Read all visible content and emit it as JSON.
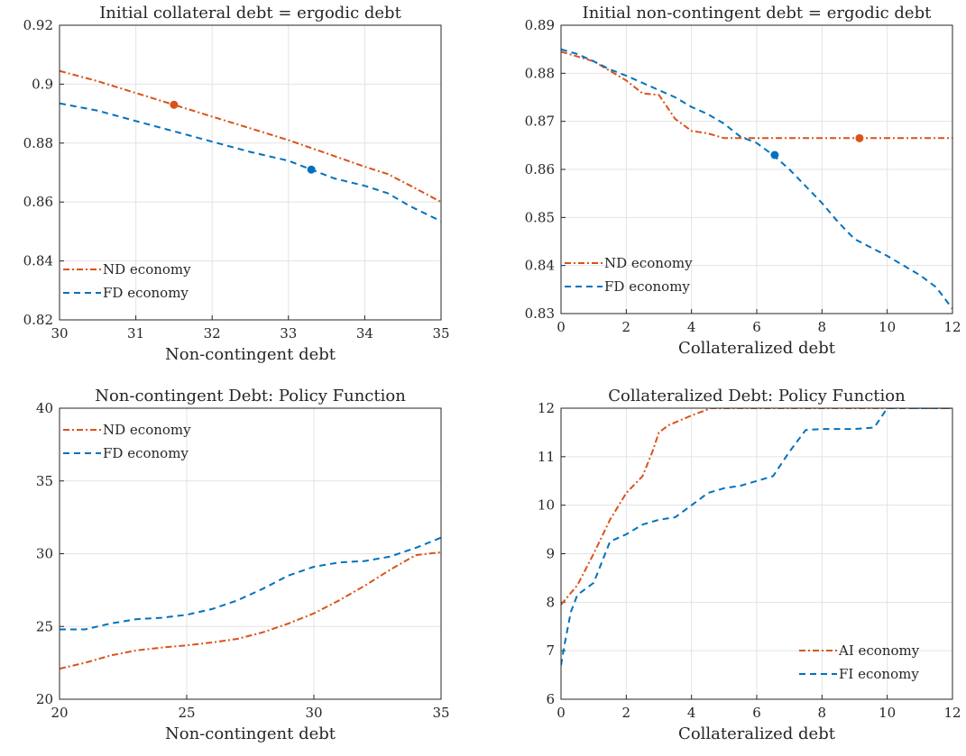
{
  "chart_data": [
    {
      "type": "line",
      "title": "Initial collateral debt = ergodic debt",
      "xlabel": "Non-contingent debt",
      "ylabel": "",
      "xlim": [
        30,
        35
      ],
      "ylim": [
        0.82,
        0.92
      ],
      "xticks": [
        "30",
        "31",
        "32",
        "33",
        "34",
        "35"
      ],
      "yticks": [
        "0.82",
        "0.84",
        "0.86",
        "0.88",
        "0.9",
        "0.92"
      ],
      "grid": true,
      "legend_position": "bottom-left",
      "series": [
        {
          "name": "ND economy",
          "color": "#D95319",
          "style": "dashdot",
          "x": [
            30,
            30.5,
            31,
            31.5,
            32,
            32.5,
            33,
            33.5,
            34,
            34.3,
            34.6,
            35
          ],
          "y": [
            0.9045,
            0.901,
            0.897,
            0.893,
            0.889,
            0.885,
            0.881,
            0.8765,
            0.872,
            0.8695,
            0.8655,
            0.86
          ],
          "marker": {
            "x": 31.5,
            "y": 0.893
          }
        },
        {
          "name": "FD economy",
          "color": "#0072BD",
          "style": "dashed",
          "x": [
            30,
            30.5,
            31,
            31.5,
            32,
            32.5,
            33,
            33.3,
            33.6,
            34,
            34.3,
            34.6,
            35
          ],
          "y": [
            0.8935,
            0.891,
            0.8875,
            0.884,
            0.8805,
            0.877,
            0.874,
            0.871,
            0.868,
            0.8655,
            0.863,
            0.8585,
            0.8535
          ],
          "marker": {
            "x": 33.3,
            "y": 0.871
          }
        }
      ]
    },
    {
      "type": "line",
      "title": "Initial non-contingent debt = ergodic debt",
      "xlabel": "Collateralized debt",
      "ylabel": "",
      "xlim": [
        0,
        12
      ],
      "ylim": [
        0.83,
        0.89
      ],
      "xticks": [
        "0",
        "2",
        "4",
        "6",
        "8",
        "10",
        "12"
      ],
      "yticks": [
        "0.83",
        "0.84",
        "0.85",
        "0.86",
        "0.87",
        "0.88",
        "0.89"
      ],
      "grid": true,
      "legend_position": "bottom-left",
      "series": [
        {
          "name": "ND economy",
          "color": "#D95319",
          "style": "dashdot",
          "x": [
            0,
            0.5,
            1,
            1.5,
            2,
            2.5,
            3,
            3.5,
            4,
            4.5,
            5,
            5.5,
            6,
            7,
            8,
            9,
            10,
            11,
            12
          ],
          "y": [
            0.8845,
            0.8835,
            0.8825,
            0.8805,
            0.8785,
            0.8758,
            0.8755,
            0.8705,
            0.868,
            0.8675,
            0.8665,
            0.8665,
            0.8665,
            0.8665,
            0.8665,
            0.8665,
            0.8665,
            0.8665,
            0.8665
          ],
          "marker": {
            "x": 9.15,
            "y": 0.8665
          }
        },
        {
          "name": "FD economy",
          "color": "#0072BD",
          "style": "dashed",
          "x": [
            0,
            0.5,
            1,
            1.5,
            2,
            2.5,
            3,
            3.5,
            4,
            4.5,
            5,
            5.5,
            6,
            6.5,
            7,
            7.5,
            8,
            8.5,
            9,
            10,
            11,
            11.5,
            12
          ],
          "y": [
            0.885,
            0.884,
            0.8825,
            0.8808,
            0.8795,
            0.878,
            0.8765,
            0.875,
            0.873,
            0.8715,
            0.8695,
            0.8668,
            0.8655,
            0.863,
            0.86,
            0.8565,
            0.853,
            0.849,
            0.8455,
            0.842,
            0.838,
            0.8355,
            0.831
          ],
          "marker": {
            "x": 6.55,
            "y": 0.863
          }
        }
      ]
    },
    {
      "type": "line",
      "title": "Non-contingent Debt: Policy Function",
      "xlabel": "Non-contingent debt",
      "ylabel": "",
      "xlim": [
        20,
        35
      ],
      "ylim": [
        20,
        40
      ],
      "xticks": [
        "20",
        "25",
        "30",
        "35"
      ],
      "yticks": [
        "20",
        "25",
        "30",
        "35",
        "40"
      ],
      "grid": true,
      "legend_position": "top-left",
      "series": [
        {
          "name": "ND economy",
          "color": "#D95319",
          "style": "dashdot",
          "x": [
            20,
            21,
            22,
            23,
            24,
            25,
            26,
            27,
            28,
            29,
            30,
            31,
            32,
            33,
            34,
            35
          ],
          "y": [
            22.1,
            22.5,
            23.0,
            23.35,
            23.55,
            23.7,
            23.9,
            24.15,
            24.6,
            25.2,
            25.9,
            26.8,
            27.8,
            28.9,
            29.9,
            30.1
          ]
        },
        {
          "name": "FD economy",
          "color": "#0072BD",
          "style": "dashed",
          "x": [
            20,
            21,
            22,
            23,
            24,
            25,
            26,
            27,
            28,
            29,
            30,
            31,
            32,
            33,
            34,
            35
          ],
          "y": [
            24.8,
            24.8,
            25.2,
            25.5,
            25.6,
            25.8,
            26.2,
            26.8,
            27.6,
            28.5,
            29.1,
            29.4,
            29.5,
            29.8,
            30.4,
            31.1
          ]
        }
      ]
    },
    {
      "type": "line",
      "title": "Collateralized Debt: Policy Function",
      "xlabel": "Collateralized debt",
      "ylabel": "",
      "xlim": [
        0,
        12
      ],
      "ylim": [
        6,
        12
      ],
      "xticks": [
        "0",
        "2",
        "4",
        "6",
        "8",
        "10",
        "12"
      ],
      "yticks": [
        "6",
        "7",
        "8",
        "9",
        "10",
        "11",
        "12"
      ],
      "grid": true,
      "legend_position": "bottom-right",
      "series": [
        {
          "name": "AI economy",
          "color": "#D95319",
          "style": "dashdot",
          "x": [
            0,
            0.5,
            1,
            1.5,
            2,
            2.5,
            2.8,
            3,
            3.3,
            4,
            4.6,
            5,
            6,
            8,
            10,
            12
          ],
          "y": [
            7.95,
            8.35,
            9.0,
            9.7,
            10.25,
            10.6,
            11.1,
            11.5,
            11.65,
            11.85,
            12,
            12,
            12,
            12,
            12,
            12
          ]
        },
        {
          "name": "FI economy",
          "color": "#0072BD",
          "style": "dashed",
          "x": [
            0,
            0.1,
            0.3,
            0.5,
            1,
            1.5,
            2,
            2.5,
            3,
            3.5,
            4,
            4.5,
            5,
            5.5,
            6,
            6.5,
            7,
            7.5,
            8,
            9,
            9.6,
            10,
            11,
            12
          ],
          "y": [
            6.7,
            7.1,
            7.8,
            8.15,
            8.4,
            9.25,
            9.4,
            9.6,
            9.7,
            9.75,
            10.0,
            10.25,
            10.35,
            10.4,
            10.5,
            10.6,
            11.1,
            11.55,
            11.57,
            11.57,
            11.6,
            12,
            12,
            12
          ]
        }
      ]
    }
  ]
}
